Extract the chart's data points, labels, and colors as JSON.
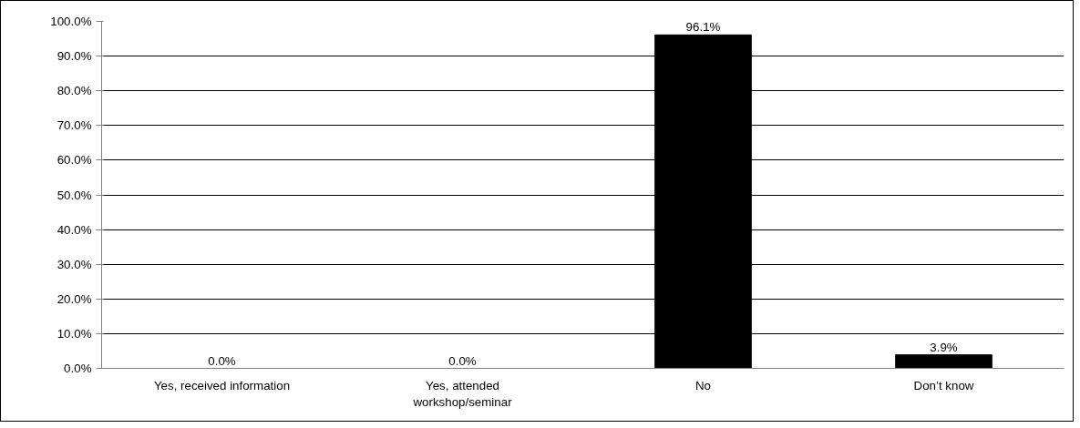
{
  "chart_data": {
    "type": "bar",
    "categories": [
      "Yes, received information",
      "Yes, attended workshop/seminar",
      "No",
      "Don’t know"
    ],
    "values": [
      0.0,
      0.0,
      96.1,
      3.9
    ],
    "value_labels": [
      "0.0%",
      "0.0%",
      "96.1%",
      "3.9%"
    ],
    "color": "#000000",
    "ylim": [
      0,
      100
    ],
    "yticks": [
      {
        "value": 0,
        "label": "0.0%"
      },
      {
        "value": 10,
        "label": "10.0%"
      },
      {
        "value": 20,
        "label": "20.0%"
      },
      {
        "value": 30,
        "label": "30.0%"
      },
      {
        "value": 40,
        "label": "40.0%"
      },
      {
        "value": 50,
        "label": "50.0%"
      },
      {
        "value": 60,
        "label": "60.0%"
      },
      {
        "value": 70,
        "label": "70.0%"
      },
      {
        "value": 80,
        "label": "80.0%"
      },
      {
        "value": 90,
        "label": "90.0%"
      },
      {
        "value": 100,
        "label": "100.0%"
      }
    ],
    "grid": "y"
  }
}
